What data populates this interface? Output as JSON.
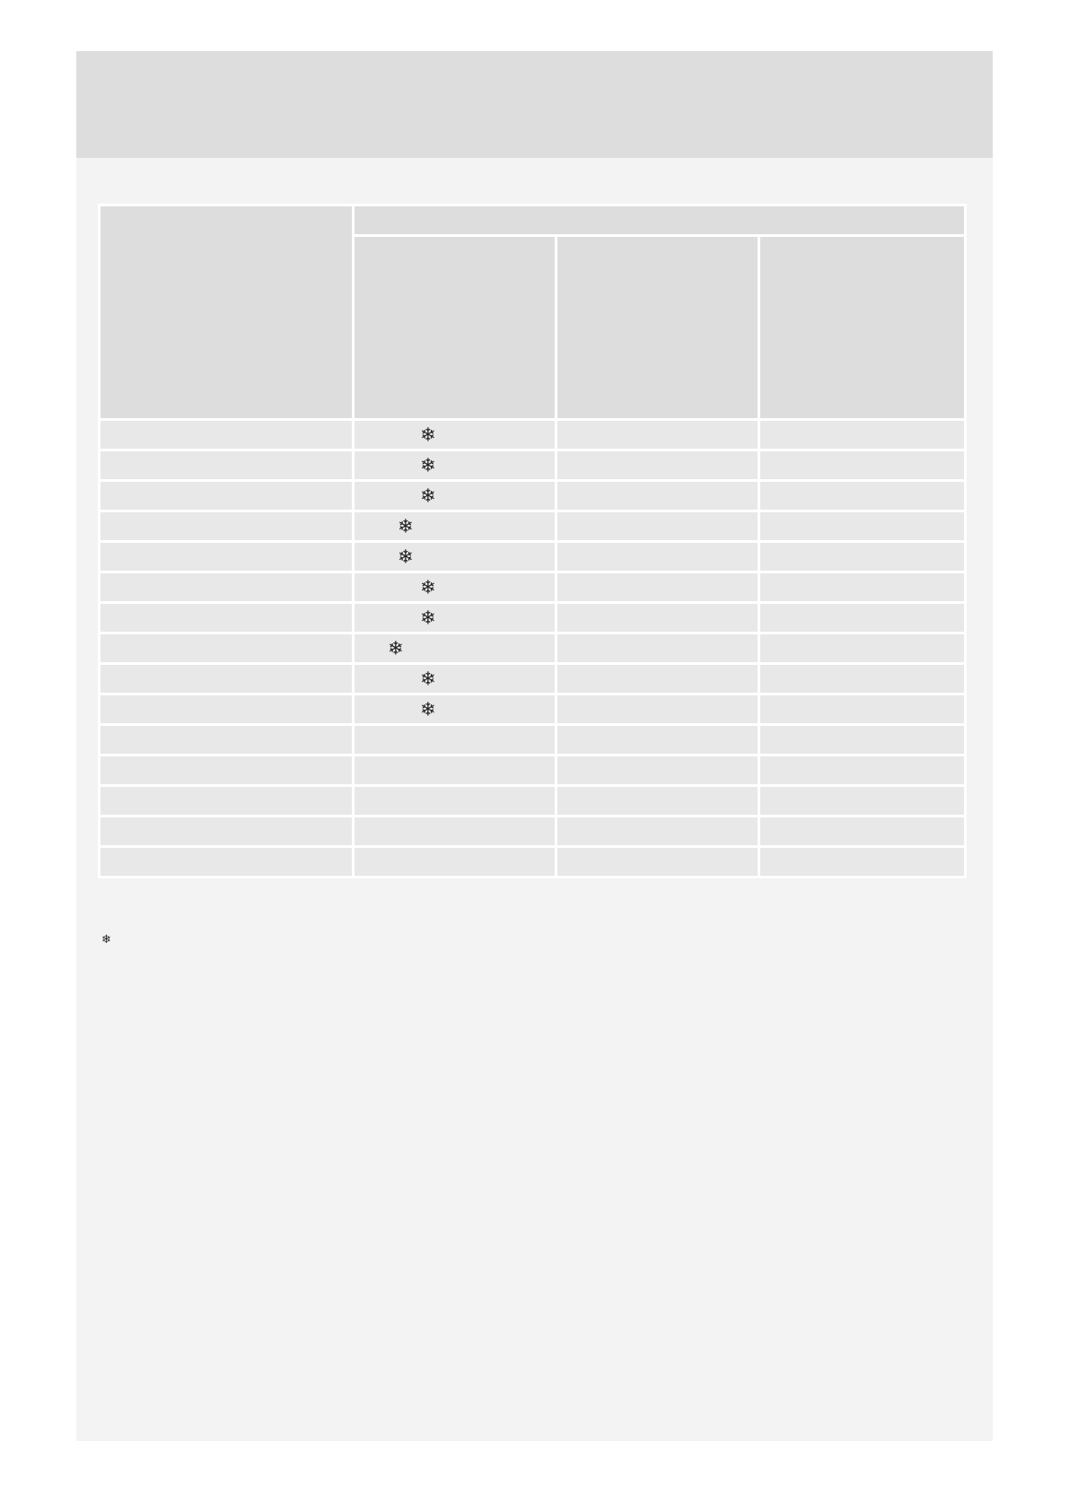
{
  "table": {
    "rows": [
      {
        "mark": "snowflake-icon",
        "glyph": "❄"
      },
      {
        "mark": "snowflake-icon",
        "glyph": "❄"
      },
      {
        "mark": "snowflake-icon",
        "glyph": "❄"
      },
      {
        "mark": "snowflake-icon",
        "glyph": "❄"
      },
      {
        "mark": "snowflake-icon",
        "glyph": "❄"
      },
      {
        "mark": "snowflake-icon",
        "glyph": "❄"
      },
      {
        "mark": "snowflake-icon",
        "glyph": "❄"
      },
      {
        "mark": "snowflake-icon",
        "glyph": "❄"
      },
      {
        "mark": "snowflake-icon",
        "glyph": "❄"
      },
      {
        "mark": "snowflake-icon",
        "glyph": "❄"
      },
      {},
      {},
      {},
      {},
      {}
    ]
  },
  "footnote": {
    "mark": "snowflake-icon",
    "glyph": "❄"
  },
  "colors": {
    "page": "#f3f3f3",
    "header_band": "#dddddd",
    "header_cell": "#dddddd",
    "body_cell": "#e8e8e8",
    "icon": "#222222"
  }
}
